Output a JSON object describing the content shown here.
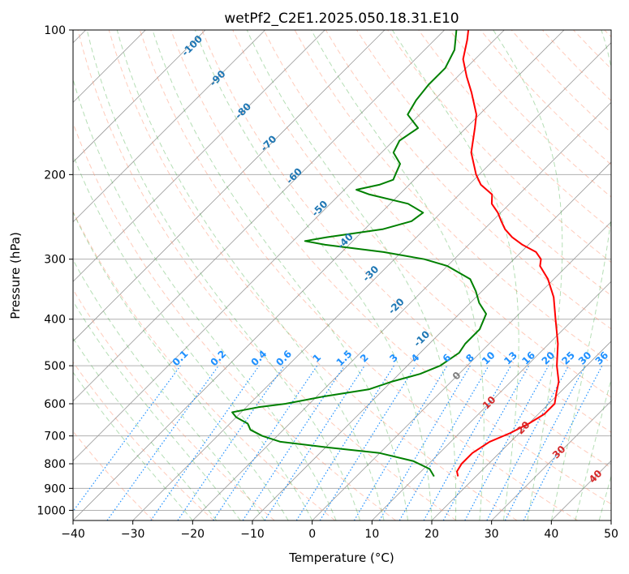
{
  "chart_data": {
    "type": "line",
    "title": "wetPf2_C2E1.2025.050.18.31.E10",
    "xlabel": "Temperature (°C)",
    "ylabel": "Pressure (hPa)",
    "xlim": [
      -40,
      50
    ],
    "ylim": [
      1050,
      100
    ],
    "y_scale": "log",
    "grid": true,
    "x_ticks": [
      "−40",
      "−30",
      "−20",
      "−10",
      "0",
      "10",
      "20",
      "30",
      "40",
      "50"
    ],
    "y_ticks": [
      "100",
      "200",
      "300",
      "400",
      "500",
      "600",
      "700",
      "800",
      "900",
      "1000"
    ],
    "isotherm_skew": "45°",
    "colors": {
      "temperature": "#ff0000",
      "dewpoint": "#008000",
      "isotherm": "#999999",
      "dry_adiabat": "#ff8c69",
      "moist_adiabat": "#2ca02c",
      "mixing_ratio": "#1e90ff"
    },
    "series": [
      {
        "key": "temperature",
        "points": [
          [
            850,
            17
          ],
          [
            830,
            16
          ],
          [
            800,
            15.5
          ],
          [
            760,
            15.5
          ],
          [
            720,
            16.5
          ],
          [
            690,
            18.5
          ],
          [
            660,
            20
          ],
          [
            630,
            21
          ],
          [
            600,
            21
          ],
          [
            570,
            19.5
          ],
          [
            540,
            18
          ],
          [
            500,
            15
          ],
          [
            450,
            11.5
          ],
          [
            400,
            7
          ],
          [
            360,
            3
          ],
          [
            330,
            -1
          ],
          [
            310,
            -4.5
          ],
          [
            300,
            -5.5
          ],
          [
            290,
            -7.5
          ],
          [
            280,
            -11
          ],
          [
            270,
            -14
          ],
          [
            260,
            -16.5
          ],
          [
            250,
            -18.5
          ],
          [
            240,
            -20.5
          ],
          [
            230,
            -23
          ],
          [
            220,
            -24.5
          ],
          [
            210,
            -28
          ],
          [
            200,
            -30.5
          ],
          [
            180,
            -35
          ],
          [
            160,
            -38.5
          ],
          [
            150,
            -40.5
          ],
          [
            135,
            -45
          ],
          [
            125,
            -48.5
          ],
          [
            115,
            -52
          ],
          [
            105,
            -54.5
          ],
          [
            100,
            -56
          ]
        ]
      },
      {
        "key": "dewpoint",
        "points": [
          [
            850,
            13
          ],
          [
            820,
            11
          ],
          [
            790,
            7
          ],
          [
            760,
            0
          ],
          [
            740,
            -9.5
          ],
          [
            720,
            -18.5
          ],
          [
            700,
            -22.5
          ],
          [
            680,
            -25.5
          ],
          [
            660,
            -27
          ],
          [
            640,
            -30
          ],
          [
            625,
            -31.5
          ],
          [
            610,
            -28
          ],
          [
            600,
            -24
          ],
          [
            580,
            -19
          ],
          [
            560,
            -12.5
          ],
          [
            540,
            -10
          ],
          [
            520,
            -6.5
          ],
          [
            500,
            -4.5
          ],
          [
            470,
            -3.5
          ],
          [
            450,
            -4
          ],
          [
            420,
            -4
          ],
          [
            390,
            -5.5
          ],
          [
            370,
            -8.5
          ],
          [
            350,
            -11
          ],
          [
            330,
            -14
          ],
          [
            310,
            -20
          ],
          [
            300,
            -25
          ],
          [
            290,
            -33
          ],
          [
            280,
            -44
          ],
          [
            275,
            -48
          ],
          [
            270,
            -45
          ],
          [
            260,
            -37
          ],
          [
            250,
            -33.5
          ],
          [
            240,
            -33
          ],
          [
            230,
            -37
          ],
          [
            220,
            -45
          ],
          [
            215,
            -48
          ],
          [
            210,
            -45
          ],
          [
            205,
            -43.5
          ],
          [
            200,
            -44
          ],
          [
            190,
            -45
          ],
          [
            180,
            -48
          ],
          [
            170,
            -49
          ],
          [
            160,
            -48
          ],
          [
            150,
            -52
          ],
          [
            140,
            -53
          ],
          [
            130,
            -53.5
          ],
          [
            120,
            -53.5
          ],
          [
            110,
            -55
          ],
          [
            100,
            -58
          ]
        ]
      }
    ],
    "dry_adiabat_labels": [
      "-100",
      "-90",
      "-80",
      "-70",
      "-60",
      "-50",
      "-40",
      "-30",
      "-20",
      "-10"
    ],
    "moist_adiabat_labels": [
      "0",
      "10",
      "20",
      "30",
      "40"
    ],
    "mixing_ratio_labels": [
      "0.1",
      "0.2",
      "0.4",
      "0.6",
      "1",
      "1.5",
      "2",
      "3",
      "4",
      "6",
      "8",
      "10",
      "13",
      "16",
      "20",
      "25",
      "30",
      "36"
    ]
  }
}
